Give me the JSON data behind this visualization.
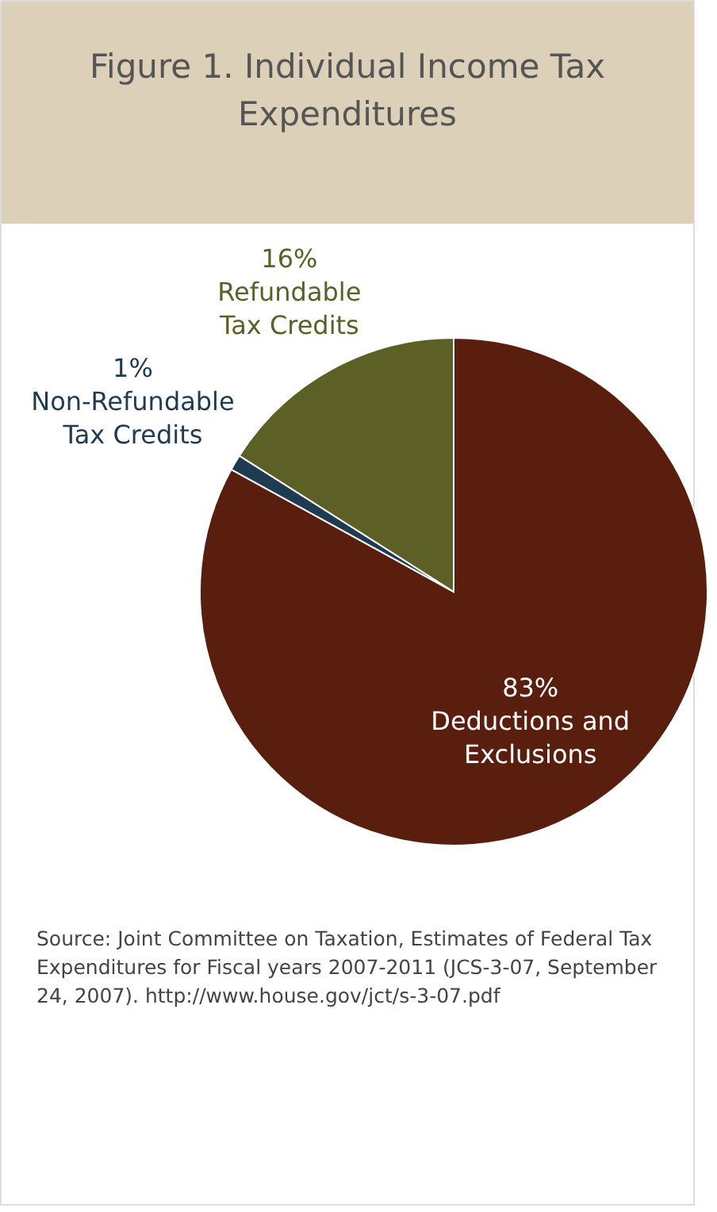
{
  "chart_data": {
    "type": "pie",
    "title": "Figure 1. Individual Income Tax Expenditures",
    "categories": [
      "Deductions and Exclusions",
      "Non-Refundable Tax Credits",
      "Refundable Tax Credits"
    ],
    "values": [
      83,
      1,
      16
    ],
    "value_labels": [
      "83%",
      "1%",
      "16%"
    ],
    "colors": [
      "#5a1e0e",
      "#1e3b52",
      "#5c6027"
    ],
    "legend": false,
    "annotations": [
      "Source:  Joint Committee on Taxation, Estimates of Federal Tax Expenditures for Fiscal years 2007-2011 (JCS-3-07, September 24, 2007). http://www.house.gov/jct/s-3-07.pdf"
    ]
  }
}
